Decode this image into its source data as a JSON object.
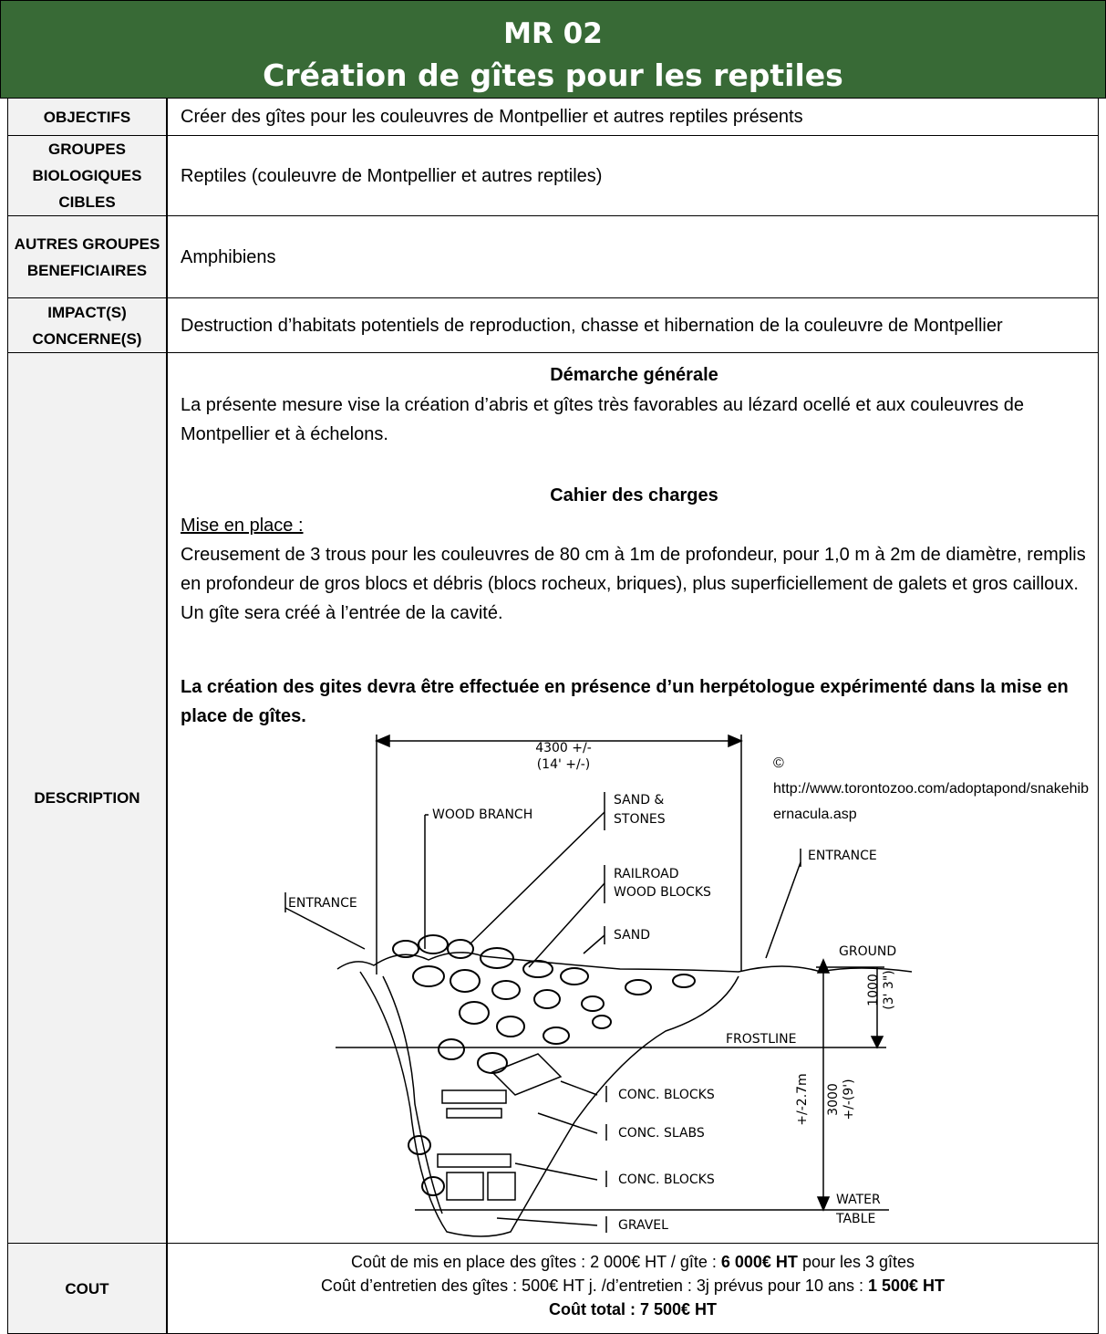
{
  "header": {
    "code": "MR 02",
    "title": "Création de gîtes pour les reptiles"
  },
  "table": {
    "rows": [
      {
        "label": "OBJECTIFS",
        "text": "Créer des gîtes pour les couleuvres de Montpellier et autres reptiles présents"
      },
      {
        "label": "GROUPES BIOLOGIQUES CIBLES",
        "text": "Reptiles (couleuvre de Montpellier et autres reptiles)"
      },
      {
        "label": "AUTRES GROUPES BENEFICIAIRES",
        "text": "Amphibiens"
      },
      {
        "label": "IMPACT(S) CONCERNE(S)",
        "text": "Destruction d’habitats potentiels de reproduction, chasse et hibernation de la couleuvre de Montpellier"
      }
    ]
  },
  "description": {
    "label": "DESCRIPTION",
    "heading1": "Démarche générale",
    "intro": "La présente mesure vise la création d’abris et gîtes très favorables au lézard ocellé et aux couleuvres de Montpellier et à échelons.",
    "heading2": "Cahier des charges",
    "subheading": "Mise en place :",
    "body": "Creusement de 3 trous pour les couleuvres de 80 cm à 1m de profondeur, pour 1,0 m à 2m de diamètre, remplis en profondeur de gros blocs et débris (blocs rocheux, briques), plus superficiellement de galets et gros cailloux. Un gîte sera créé à l’entrée de la cavité.",
    "note": "La création des gites devra être effectuée en présence d’un herpétologue expérimenté dans la mise en place de gîtes.",
    "figure": {
      "credit_symbol": "©",
      "credit_url": "http://www.torontozoo.com/adoptapond/snakehibernacula.asp",
      "labels": [
        "4300 +/-",
        "(14' +/-)",
        "WOOD BRANCH",
        "SAND &",
        "STONES",
        "RAILROAD",
        "WOOD BLOCKS",
        "ENTRANCE",
        "ENTRANCE",
        "SAND",
        "GROUND",
        "1000",
        "(3' 3\")",
        "FROSTLINE",
        "CONC. BLOCKS",
        "CONC. SLABS",
        "+/-2.7m",
        "3000",
        "+/-(9')",
        "CONC. BLOCKS",
        "WATER",
        "TABLE",
        "GRAVEL"
      ]
    }
  },
  "cost": {
    "label": "COUT",
    "lines": [
      [
        {
          "text": "Coût de mis en place des gîtes : 2 000€ HT / gîte : ",
          "bold": false
        },
        {
          "text": "6 000€ HT",
          "bold": true
        },
        {
          "text": " pour les 3 gîtes",
          "bold": false
        }
      ],
      [
        {
          "text": "Coût d’entretien des gîtes : 500€ HT j. /d’entretien : 3j prévus pour 10 ans : ",
          "bold": false
        },
        {
          "text": "1 500€ HT",
          "bold": true
        }
      ],
      [
        {
          "text": "Coût total : 7 500€ HT",
          "bold": true
        }
      ]
    ]
  }
}
